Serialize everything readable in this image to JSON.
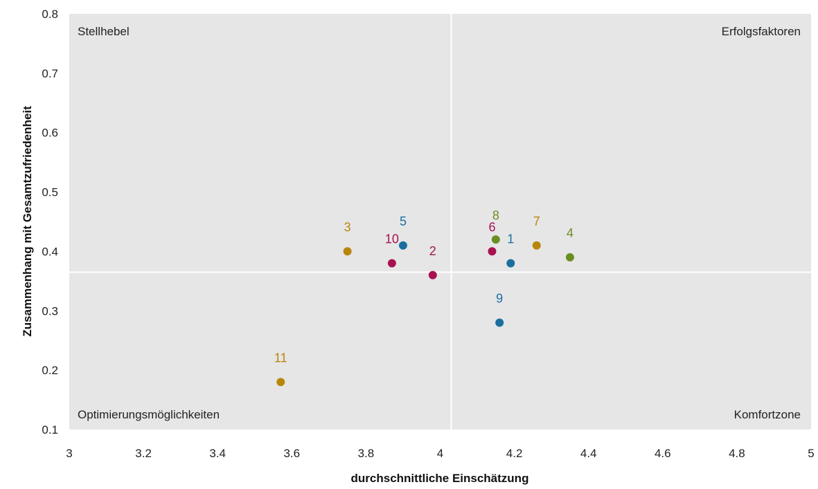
{
  "chart_data": {
    "type": "scatter",
    "xlabel": "durchschnittliche Einschätzung",
    "ylabel": "Zusammenhang mit Gesamtzufriedenheit",
    "xlim": [
      3,
      5
    ],
    "ylim": [
      0.1,
      0.8
    ],
    "x_ticks": [
      "3",
      "3.2",
      "3.4",
      "3.6",
      "3.8",
      "4",
      "4.2",
      "4.4",
      "4.6",
      "4.8",
      "5"
    ],
    "y_ticks": [
      "0.1",
      "0.2",
      "0.3",
      "0.4",
      "0.5",
      "0.6",
      "0.7",
      "0.8"
    ],
    "reference_lines": {
      "x": 4.03,
      "y": 0.365
    },
    "quadrant_labels": {
      "top_left": "Stellhebel",
      "top_right": "Erfolgsfaktoren",
      "bottom_left": "Optimierungsmöglichkeiten",
      "bottom_right": "Komfortzone"
    },
    "grid": false,
    "background_color": "#e6e6e6",
    "points": [
      {
        "label": "1",
        "x": 4.19,
        "y": 0.38,
        "color": "#1b6fa0"
      },
      {
        "label": "2",
        "x": 3.98,
        "y": 0.36,
        "color": "#a8124f"
      },
      {
        "label": "3",
        "x": 3.75,
        "y": 0.4,
        "color": "#b8860b"
      },
      {
        "label": "4",
        "x": 4.35,
        "y": 0.39,
        "color": "#6b8e23"
      },
      {
        "label": "5",
        "x": 3.9,
        "y": 0.41,
        "color": "#1b6fa0"
      },
      {
        "label": "6",
        "x": 4.14,
        "y": 0.4,
        "color": "#a8124f"
      },
      {
        "label": "7",
        "x": 4.26,
        "y": 0.41,
        "color": "#b8860b"
      },
      {
        "label": "8",
        "x": 4.15,
        "y": 0.42,
        "color": "#6b8e23"
      },
      {
        "label": "9",
        "x": 4.16,
        "y": 0.28,
        "color": "#1b6fa0"
      },
      {
        "label": "10",
        "x": 3.87,
        "y": 0.38,
        "color": "#a8124f"
      },
      {
        "label": "11",
        "x": 3.57,
        "y": 0.18,
        "color": "#b8860b"
      }
    ]
  }
}
